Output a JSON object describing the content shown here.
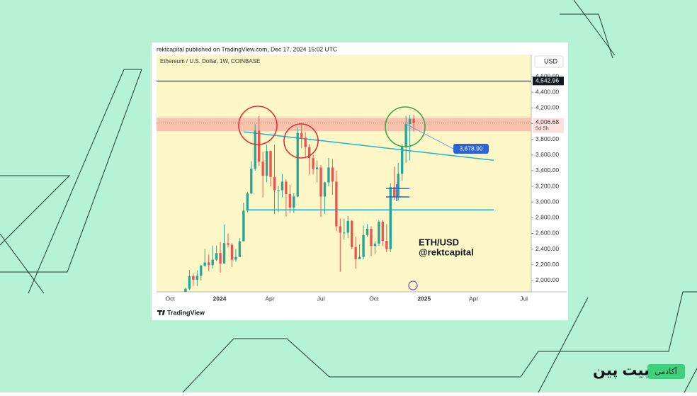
{
  "header": {
    "published": "rektcapital published on TradingView.com, Dec 17, 2024 15:02 UTC",
    "symbol": "Ethereum / U.S. Dollar, 1W, COINBASE"
  },
  "chart_data": {
    "type": "candlestick",
    "currency": "USD",
    "up_color": "#26a69a",
    "down_color": "#ef5350",
    "open": [
      1810,
      1895,
      2055,
      2010,
      2060,
      2190,
      2230,
      2195,
      2265,
      2350,
      2215,
      2475,
      2455,
      2265,
      2300,
      2500,
      2890,
      3110,
      3425,
      3910,
      3515,
      3335,
      3650,
      3320,
      3150,
      3150,
      3260,
      3100,
      2930,
      3070,
      3880,
      3820,
      3700,
      3560,
      3420,
      3440,
      3070,
      3250,
      3440,
      3260,
      2690,
      2610,
      2610,
      2760,
      2425,
      2270,
      2300,
      2580,
      2660,
      2440,
      2470,
      2750,
      2505,
      2400,
      3190,
      3070,
      3360,
      3700,
      3995,
      4060
    ],
    "high": [
      1910,
      2135,
      2090,
      2130,
      2200,
      2400,
      2330,
      2445,
      2445,
      2490,
      2715,
      2600,
      2480,
      2400,
      2540,
      2990,
      3130,
      3520,
      3990,
      4095,
      3640,
      3730,
      3660,
      3730,
      3200,
      3360,
      3290,
      3220,
      3110,
      3950,
      3980,
      3890,
      3740,
      3600,
      3530,
      3470,
      3260,
      3560,
      3550,
      3400,
      2790,
      2790,
      2820,
      2770,
      2560,
      2460,
      2700,
      2720,
      2690,
      2500,
      2770,
      2770,
      2720,
      3240,
      3450,
      3500,
      3740,
      4100,
      4110,
      4110
    ],
    "low": [
      1800,
      1880,
      1930,
      1930,
      2000,
      2170,
      2120,
      2150,
      2250,
      2100,
      2215,
      2420,
      2170,
      2240,
      2300,
      2500,
      2870,
      3100,
      3400,
      3460,
      3060,
      3250,
      3200,
      2850,
      2870,
      3060,
      2815,
      2860,
      2860,
      3060,
      3690,
      3560,
      3350,
      3350,
      3250,
      2810,
      2850,
      3200,
      3090,
      2630,
      2110,
      2520,
      2540,
      2400,
      2150,
      2270,
      2270,
      2560,
      2310,
      2340,
      2440,
      2440,
      2360,
      2360,
      3030,
      3020,
      3270,
      3500,
      3530,
      3900
    ],
    "close": [
      1895,
      2055,
      2010,
      2060,
      2190,
      2230,
      2195,
      2265,
      2350,
      2215,
      2475,
      2455,
      2265,
      2300,
      2500,
      2890,
      3110,
      3425,
      3910,
      3515,
      3335,
      3650,
      3320,
      3150,
      3150,
      3260,
      3100,
      2930,
      3070,
      3880,
      3820,
      3700,
      3560,
      3420,
      3440,
      3070,
      3250,
      3440,
      3260,
      2690,
      2610,
      2610,
      2760,
      2425,
      2270,
      2300,
      2580,
      2660,
      2440,
      2470,
      2750,
      2505,
      2400,
      3190,
      3070,
      3360,
      3700,
      3995,
      4060,
      4006.68
    ],
    "xlim": [
      -7.5,
      89.4
    ],
    "xticks": [
      {
        "value": -4,
        "label": "Oct"
      },
      {
        "value": 8.8,
        "label": "2024"
      },
      {
        "value": 21.8,
        "label": "Apr"
      },
      {
        "value": 35,
        "label": "Jul"
      },
      {
        "value": 48.7,
        "label": "Oct"
      },
      {
        "value": 61.7,
        "label": "2025"
      },
      {
        "value": 74.5,
        "label": "Apr"
      },
      {
        "value": 87.5,
        "label": "Jul"
      }
    ],
    "ylim": [
      1855,
      4880
    ],
    "yticks": [
      {
        "value": 2000,
        "label": "2,000.00"
      },
      {
        "value": 2200,
        "label": "2,200.00"
      },
      {
        "value": 2400,
        "label": "2,400.00"
      },
      {
        "value": 2600,
        "label": "2,600.00"
      },
      {
        "value": 2800,
        "label": "2,800.00"
      },
      {
        "value": 3000,
        "label": "3,000.00"
      },
      {
        "value": 3200,
        "label": "3,200.00"
      },
      {
        "value": 3400,
        "label": "3,400.00"
      },
      {
        "value": 3600,
        "label": "3,600.00"
      },
      {
        "value": 3800,
        "label": "3,800.00"
      },
      {
        "value": 4000,
        "label": "4,000.00"
      },
      {
        "value": 4200,
        "label": "4,200.00"
      },
      {
        "value": 4400,
        "label": "4,400.00"
      },
      {
        "value": 4600,
        "label": "4,600.00"
      }
    ],
    "resistance_zone": {
      "range": [
        3903,
        4075
      ],
      "color": "#f7b9a6"
    },
    "horizontal_line": {
      "value": 4542.96,
      "label": "4,542.96"
    },
    "last_price": {
      "value": 4006.68,
      "label": "4,006.68",
      "countdown": "5d 5h"
    },
    "callout": {
      "value": 3678.9,
      "label": "3,678.90"
    },
    "trendlines": [
      {
        "from": [
          15,
          3895
        ],
        "to": [
          79.7,
          3532
        ]
      },
      {
        "from": [
          15.9,
          2900
        ],
        "to": [
          79.7,
          2900
        ]
      }
    ],
    "trendline_color": "#1fb5d0",
    "annotation": [
      "ETH/USD",
      "@rektcapital"
    ]
  },
  "footer": {
    "logo": "TradingView"
  },
  "brand": {
    "badge": "آکادمی",
    "name": "بیت پین"
  }
}
